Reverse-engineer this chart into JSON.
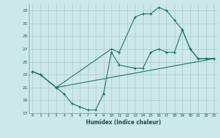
{
  "xlabel": "Humidex (Indice chaleur)",
  "bg_color": "#cce8e8",
  "grid_color": "#b0cccc",
  "line_color": "#1a6e60",
  "xlim": [
    -0.5,
    23.5
  ],
  "ylim": [
    17,
    34
  ],
  "xticks": [
    0,
    1,
    2,
    3,
    4,
    5,
    6,
    7,
    8,
    9,
    10,
    11,
    12,
    13,
    14,
    15,
    16,
    17,
    18,
    19,
    20,
    21,
    22,
    23
  ],
  "yticks": [
    17,
    19,
    21,
    23,
    25,
    27,
    29,
    31,
    33
  ],
  "curve1_x": [
    0,
    1,
    3,
    4,
    5,
    6,
    7,
    8,
    9,
    10,
    11,
    13,
    14,
    15,
    16,
    17,
    18,
    19,
    20,
    21,
    22,
    23
  ],
  "curve1_y": [
    23.5,
    23.0,
    21.0,
    20.0,
    18.5,
    18.0,
    17.5,
    17.5,
    20.0,
    26.5,
    24.5,
    24.0,
    24.0,
    26.5,
    27.0,
    26.5,
    26.5,
    30.0,
    27.0,
    25.5,
    25.5,
    25.5
  ],
  "curve2_x": [
    0,
    1,
    3,
    10,
    11,
    13,
    14,
    15,
    16,
    17,
    18,
    19,
    20,
    21,
    22,
    23
  ],
  "curve2_y": [
    23.5,
    23.0,
    21.0,
    27.0,
    26.5,
    32.0,
    32.5,
    32.5,
    33.5,
    33.0,
    31.5,
    30.0,
    27.0,
    25.5,
    25.5,
    25.5
  ],
  "curve3_x": [
    0,
    1,
    3,
    23
  ],
  "curve3_y": [
    23.5,
    23.0,
    21.0,
    25.5
  ]
}
